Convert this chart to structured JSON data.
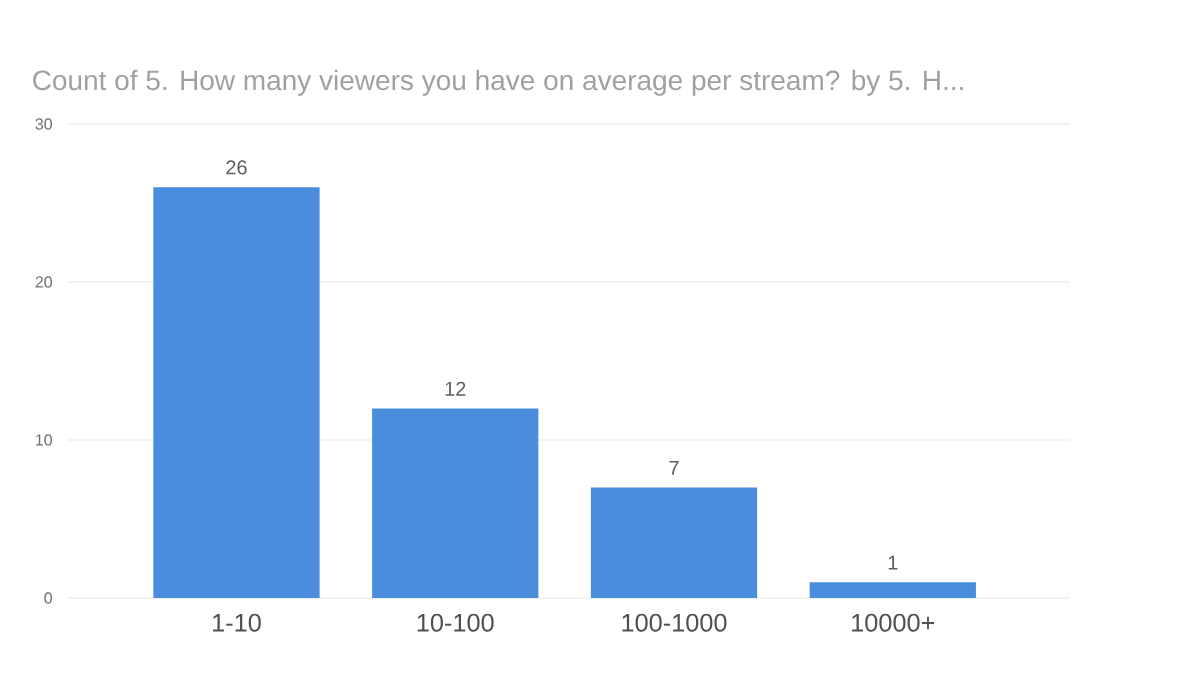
{
  "chart_data": {
    "type": "bar",
    "title": "Count of 5. How many viewers you have on average per stream? by 5. H...",
    "categories": [
      "1-10",
      "10-100",
      "100-1000",
      "10000+"
    ],
    "values": [
      26,
      12,
      7,
      1
    ],
    "color": "#4a8ddc",
    "ylim": [
      0,
      30
    ],
    "yticks": [
      0,
      10,
      20,
      30
    ],
    "grid": "y",
    "data_labels": true
  }
}
